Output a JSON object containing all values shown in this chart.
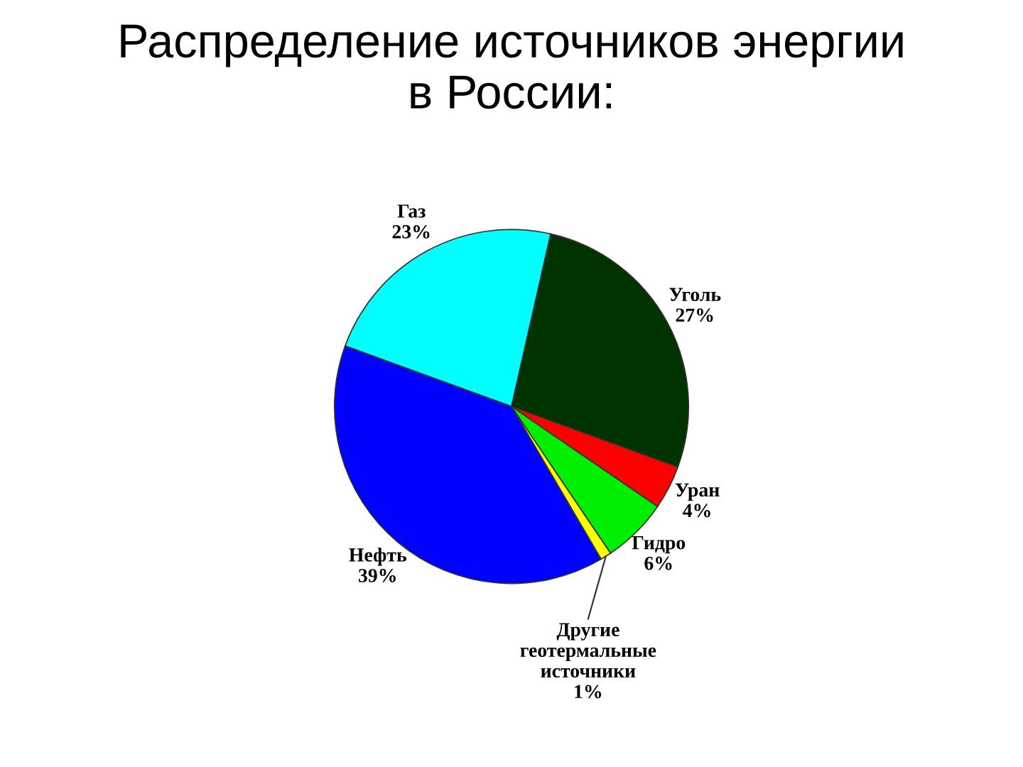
{
  "chart_data": {
    "type": "pie",
    "title": "Распределение источников энергии\nв России:",
    "categories": [
      "Газ",
      "Уголь",
      "Уран",
      "Гидро",
      "Другие\nгеотермальные\nисточники",
      "Нефть"
    ],
    "values": [
      23,
      27,
      4,
      6,
      1,
      39
    ],
    "value_labels": [
      "23%",
      "27%",
      "4%",
      "6%",
      "1%",
      "39%"
    ],
    "colors": [
      "#00ffff",
      "#003300",
      "#ff0000",
      "#00ee00",
      "#ffff00",
      "#0000ff"
    ]
  }
}
